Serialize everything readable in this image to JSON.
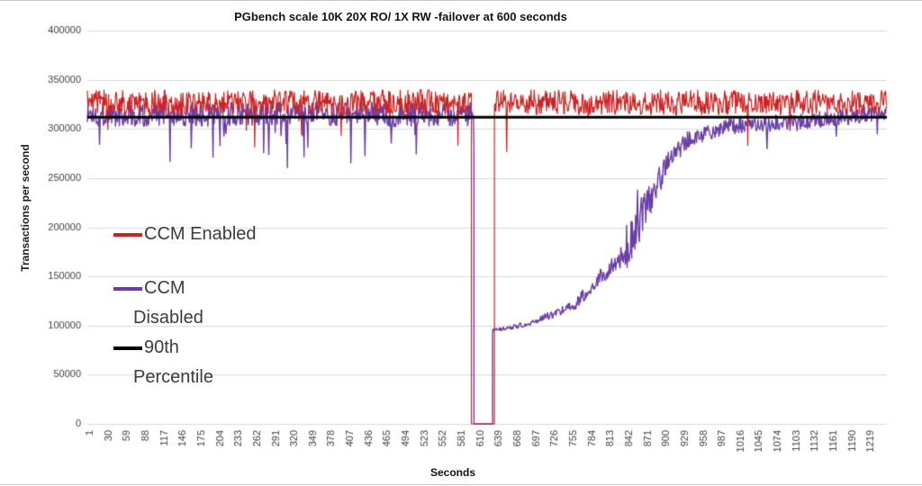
{
  "chart_data": {
    "type": "line",
    "title": "PGbench scale 10K 20X RO/ 1X RW -failover at 600 seconds",
    "xlabel": "Seconds",
    "ylabel": "Transactions per second",
    "xlim": [
      1,
      1248
    ],
    "ylim": [
      0,
      400000
    ],
    "y_ticks": [
      0,
      50000,
      100000,
      150000,
      200000,
      250000,
      300000,
      350000,
      400000
    ],
    "x_ticks": [
      1,
      30,
      59,
      88,
      117,
      146,
      175,
      204,
      233,
      262,
      291,
      320,
      349,
      378,
      407,
      436,
      465,
      494,
      523,
      552,
      581,
      610,
      639,
      668,
      697,
      726,
      755,
      784,
      813,
      842,
      871,
      900,
      929,
      958,
      987,
      1016,
      1045,
      1074,
      1103,
      1132,
      1161,
      1190,
      1219
    ],
    "grid": "horizontal",
    "grid_color": "#d9d9d9",
    "axis_color": "#3f3f3f",
    "legend_position": "inside-left",
    "series": [
      {
        "name": "CCM Enabled",
        "color": "#cc2222",
        "line_width": 1.2,
        "phases": [
          {
            "t0": 1,
            "t1": 600,
            "v0": 327000,
            "v1": 327000,
            "noise": 13000,
            "dip_chance": 0.02,
            "dip_depth": 55000
          },
          {
            "t0": 600,
            "t1": 636,
            "v0": 0,
            "v1": 0,
            "noise": 0
          },
          {
            "t0": 636,
            "t1": 1248,
            "v0": 327000,
            "v1": 327000,
            "noise": 13000,
            "dip_chance": 0.015,
            "dip_depth": 50000
          }
        ]
      },
      {
        "name": "CCM Disabled",
        "color": "#6a3fa5",
        "line_width": 1.4,
        "phases": [
          {
            "t0": 1,
            "t1": 604,
            "v0": 315000,
            "v1": 315000,
            "noise": 13000,
            "dip_chance": 0.03,
            "dip_depth": 52000
          },
          {
            "t0": 604,
            "t1": 633,
            "v0": 0,
            "v1": 0,
            "noise": 0
          },
          {
            "t0": 633,
            "t1": 660,
            "v0": 95000,
            "v1": 98000,
            "noise": 2000
          },
          {
            "t0": 660,
            "t1": 700,
            "v0": 98000,
            "v1": 104000,
            "noise": 2600
          },
          {
            "t0": 700,
            "t1": 760,
            "v0": 104000,
            "v1": 121000,
            "noise": 4200
          },
          {
            "t0": 760,
            "t1": 800,
            "v0": 121000,
            "v1": 148000,
            "noise": 7000
          },
          {
            "t0": 800,
            "t1": 840,
            "v0": 148000,
            "v1": 174000,
            "noise": 11000
          },
          {
            "t0": 840,
            "t1": 870,
            "v0": 174000,
            "v1": 216000,
            "noise": 20000,
            "spike_chance": 0.15,
            "spike_height": 42000
          },
          {
            "t0": 870,
            "t1": 905,
            "v0": 216000,
            "v1": 268000,
            "noise": 17000
          },
          {
            "t0": 905,
            "t1": 940,
            "v0": 268000,
            "v1": 290000,
            "noise": 10000
          },
          {
            "t0": 940,
            "t1": 1000,
            "v0": 290000,
            "v1": 302000,
            "noise": 8000
          },
          {
            "t0": 1000,
            "t1": 1248,
            "v0": 302000,
            "v1": 316000,
            "noise": 9000,
            "dip_chance": 0.02,
            "dip_depth": 30000
          }
        ]
      }
    ],
    "reference_line": {
      "name": "90th Percentile",
      "value": 312000,
      "color": "#000000",
      "line_width": 3
    }
  },
  "legend": {
    "items": [
      {
        "label_lines": [
          "CCM Enabled"
        ]
      },
      {
        "label_lines": [
          "CCM",
          "Disabled"
        ]
      },
      {
        "label_lines": [
          "90th",
          "Percentile"
        ]
      }
    ]
  }
}
